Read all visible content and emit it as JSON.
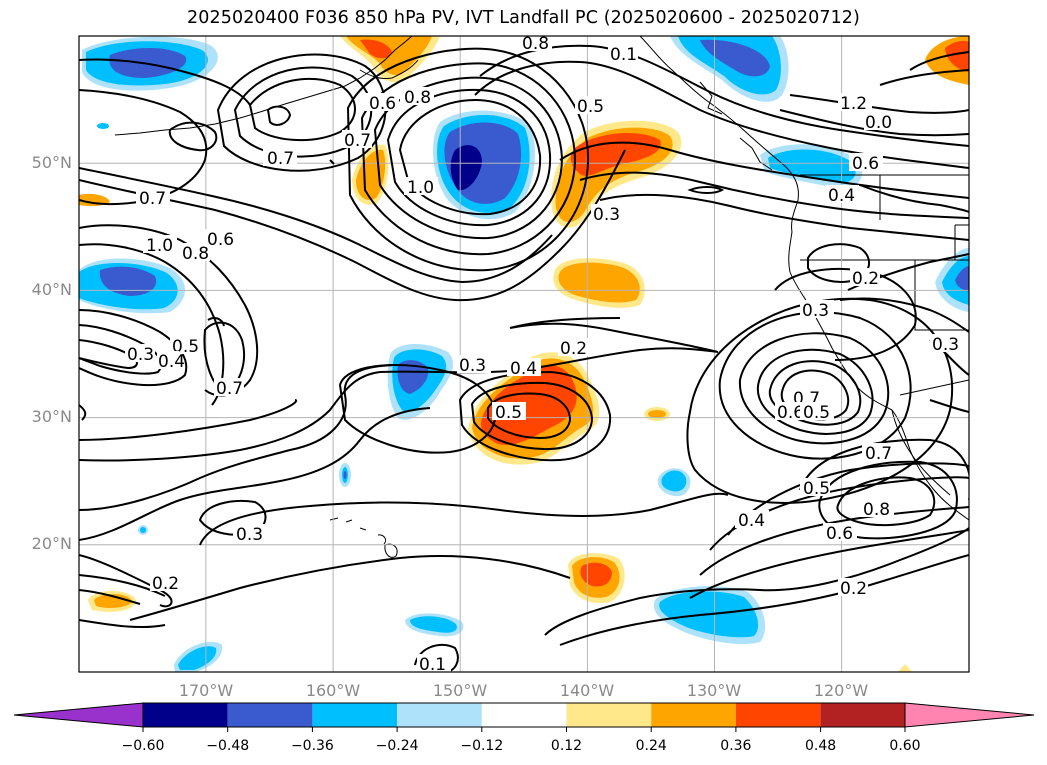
{
  "title": "2025020400 F036 850 hPa PV, IVT Landfall PC (2025020600 - 2025020712)",
  "map": {
    "lat_labels": [
      "50°N",
      "40°N",
      "30°N",
      "20°N"
    ],
    "lon_labels": [
      "170°W",
      "160°W",
      "150°W",
      "140°W",
      "130°W",
      "120°W"
    ],
    "extent": {
      "lon_min": -180,
      "lon_max": -110,
      "lat_min": 10,
      "lat_max": 60
    },
    "contour_labels": [
      "0.8",
      "0.6",
      "0.8",
      "0.7",
      "0.7",
      "1.0",
      "0.5",
      "0.3",
      "0.6",
      "0.4",
      "1.2",
      "0.7",
      "1.0",
      "0.8",
      "0.6",
      "0.3",
      "0.5",
      "0.4",
      "0.7",
      "0.3",
      "0.4",
      "0.2",
      "0.5",
      "0.2",
      "0.3",
      "0.3",
      "0.7",
      "0.6",
      "0.5",
      "0.7",
      "0.5",
      "0.4",
      "0.8",
      "0.6",
      "0.3",
      "0.2",
      "0.2",
      "0.1",
      "0.1",
      "0.0"
    ]
  },
  "colorbar": {
    "ticks": [
      "−0.60",
      "−0.48",
      "−0.36",
      "−0.24",
      "−0.12",
      "0.12",
      "0.24",
      "0.36",
      "0.48",
      "0.60"
    ],
    "colors": [
      "#9932cc",
      "#00008b",
      "#3a5bd0",
      "#00bfff",
      "#aee2fa",
      "#ffffff",
      "#ffe88a",
      "#ffa500",
      "#ff4500",
      "#b22222",
      "#ff85b0"
    ]
  }
}
